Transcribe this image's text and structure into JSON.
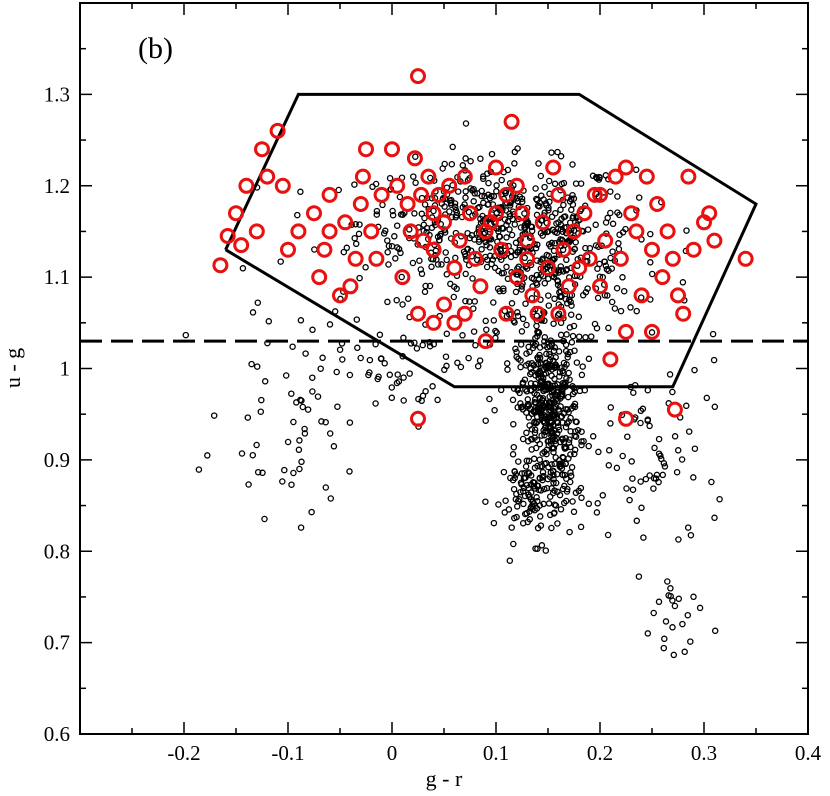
{
  "chart_data": {
    "type": "scatter",
    "panel_label": "(b)",
    "xlabel": "g - r",
    "ylabel": "u - g",
    "xlim": [
      -0.3,
      0.4
    ],
    "ylim": [
      0.6,
      1.4
    ],
    "x_ticks": [
      -0.2,
      -0.1,
      0,
      0.1,
      0.2,
      0.3,
      0.4
    ],
    "x_tick_labels": [
      "-0.2",
      "-0.1",
      "0",
      "0.1",
      "0.2",
      "0.3",
      "0.4"
    ],
    "y_ticks": [
      0.6,
      0.7,
      0.8,
      0.9,
      1.0,
      1.1,
      1.2,
      1.3
    ],
    "y_tick_labels": [
      "0.6",
      "0.7",
      "0.8",
      "0.9",
      "1",
      "1.1",
      "1.2",
      "1.3"
    ],
    "grid": false,
    "colors": {
      "background": "#000000",
      "highlighted": "#e8110f",
      "lines": "#000000"
    },
    "selection_polygon": [
      [
        -0.16,
        1.13
      ],
      [
        -0.09,
        1.3
      ],
      [
        0.18,
        1.3
      ],
      [
        0.35,
        1.18
      ],
      [
        0.27,
        0.98
      ],
      [
        0.06,
        0.98
      ],
      [
        -0.16,
        1.13
      ]
    ],
    "dashed_cut_y": 1.03,
    "series": [
      {
        "name": "background",
        "marker": "small-open-circle",
        "generated": "dense cloud; approx 1500 points, approximated by sampled clusters below",
        "clusters": [
          {
            "center": [
              0.1,
              1.16
            ],
            "spread": [
              0.11,
              0.055
            ],
            "count": 480
          },
          {
            "center": [
              0.15,
              1.1
            ],
            "spread": [
              0.07,
              0.06
            ],
            "count": 230
          },
          {
            "center": [
              0.15,
              0.96
            ],
            "spread": [
              0.025,
              0.07
            ],
            "count": 420
          },
          {
            "center": [
              0.14,
              0.86
            ],
            "spread": [
              0.035,
              0.04
            ],
            "count": 120
          },
          {
            "center": [
              0.25,
              0.9
            ],
            "spread": [
              0.06,
              0.1
            ],
            "count": 80
          },
          {
            "center": [
              0.27,
              0.72
            ],
            "spread": [
              0.03,
              0.06
            ],
            "count": 22
          },
          {
            "center": [
              -0.09,
              0.96
            ],
            "spread": [
              0.06,
              0.1
            ],
            "count": 70
          },
          {
            "center": [
              0.02,
              1.02
            ],
            "spread": [
              0.07,
              0.06
            ],
            "count": 60
          }
        ]
      },
      {
        "name": "highlighted",
        "marker": "large-open-circle",
        "points": [
          [
            -0.165,
            1.113
          ],
          [
            -0.158,
            1.145
          ],
          [
            -0.15,
            1.17
          ],
          [
            -0.145,
            1.135
          ],
          [
            -0.14,
            1.2
          ],
          [
            -0.13,
            1.15
          ],
          [
            -0.125,
            1.24
          ],
          [
            -0.11,
            1.26
          ],
          [
            -0.105,
            1.2
          ],
          [
            -0.1,
            1.13
          ],
          [
            -0.09,
            1.15
          ],
          [
            -0.075,
            1.17
          ],
          [
            -0.07,
            1.1
          ],
          [
            -0.065,
            1.13
          ],
          [
            -0.06,
            1.15
          ],
          [
            -0.05,
            1.08
          ],
          [
            -0.045,
            1.16
          ],
          [
            -0.04,
            1.09
          ],
          [
            -0.035,
            1.12
          ],
          [
            -0.03,
            1.18
          ],
          [
            -0.028,
            1.21
          ],
          [
            -0.025,
            1.24
          ],
          [
            -0.02,
            1.15
          ],
          [
            -0.015,
            1.12
          ],
          [
            -0.01,
            1.19
          ],
          [
            0.0,
            1.24
          ],
          [
            0.005,
            1.2
          ],
          [
            0.01,
            1.1
          ],
          [
            0.015,
            1.18
          ],
          [
            0.018,
            1.15
          ],
          [
            0.022,
            1.23
          ],
          [
            0.025,
            1.32
          ],
          [
            0.025,
            1.06
          ],
          [
            0.028,
            1.19
          ],
          [
            0.03,
            1.14
          ],
          [
            0.035,
            1.21
          ],
          [
            0.04,
            1.05
          ],
          [
            0.04,
            1.13
          ],
          [
            0.045,
            1.19
          ],
          [
            0.05,
            1.07
          ],
          [
            0.05,
            1.16
          ],
          [
            0.055,
            1.2
          ],
          [
            0.06,
            1.11
          ],
          [
            0.065,
            1.14
          ],
          [
            0.07,
            1.21
          ],
          [
            0.07,
            1.06
          ],
          [
            0.075,
            1.17
          ],
          [
            0.08,
            1.12
          ],
          [
            0.085,
            1.09
          ],
          [
            0.09,
            1.15
          ],
          [
            0.095,
            1.16
          ],
          [
            0.1,
            1.22
          ],
          [
            0.1,
            1.17
          ],
          [
            0.105,
            1.13
          ],
          [
            0.11,
            1.06
          ],
          [
            0.115,
            1.27
          ],
          [
            0.12,
            1.2
          ],
          [
            0.12,
            1.1
          ],
          [
            0.125,
            1.17
          ],
          [
            0.13,
            1.14
          ],
          [
            0.135,
            1.08
          ],
          [
            0.14,
            1.06
          ],
          [
            0.145,
            1.16
          ],
          [
            0.15,
            1.11
          ],
          [
            0.155,
            1.22
          ],
          [
            0.16,
            1.19
          ],
          [
            0.165,
            1.13
          ],
          [
            0.17,
            1.09
          ],
          [
            0.175,
            1.15
          ],
          [
            0.18,
            1.11
          ],
          [
            0.185,
            1.17
          ],
          [
            0.19,
            1.12
          ],
          [
            0.195,
            1.19
          ],
          [
            0.2,
            1.09
          ],
          [
            0.205,
            1.14
          ],
          [
            0.21,
            1.01
          ],
          [
            0.215,
            1.21
          ],
          [
            0.22,
            1.12
          ],
          [
            0.225,
            1.22
          ],
          [
            0.225,
            1.04
          ],
          [
            0.225,
            0.945
          ],
          [
            0.23,
            1.17
          ],
          [
            0.235,
            1.15
          ],
          [
            0.24,
            1.08
          ],
          [
            0.245,
            1.21
          ],
          [
            0.25,
            1.13
          ],
          [
            0.25,
            1.04
          ],
          [
            0.255,
            1.18
          ],
          [
            0.26,
            1.1
          ],
          [
            0.265,
            1.15
          ],
          [
            0.27,
            1.12
          ],
          [
            0.272,
            0.955
          ],
          [
            0.275,
            1.08
          ],
          [
            0.28,
            1.06
          ],
          [
            0.285,
            1.21
          ],
          [
            0.29,
            1.13
          ],
          [
            0.3,
            1.16
          ],
          [
            0.305,
            1.17
          ],
          [
            0.31,
            1.14
          ],
          [
            0.34,
            1.12
          ],
          [
            0.025,
            0.945
          ],
          [
            -0.12,
            1.21
          ],
          [
            0.06,
            1.05
          ],
          [
            0.09,
            1.03
          ],
          [
            0.16,
            1.06
          ],
          [
            0.2,
            1.19
          ],
          [
            0.11,
            1.19
          ],
          [
            -0.06,
            1.19
          ],
          [
            0.04,
            1.17
          ],
          [
            0.13,
            1.12
          ]
        ]
      }
    ]
  }
}
